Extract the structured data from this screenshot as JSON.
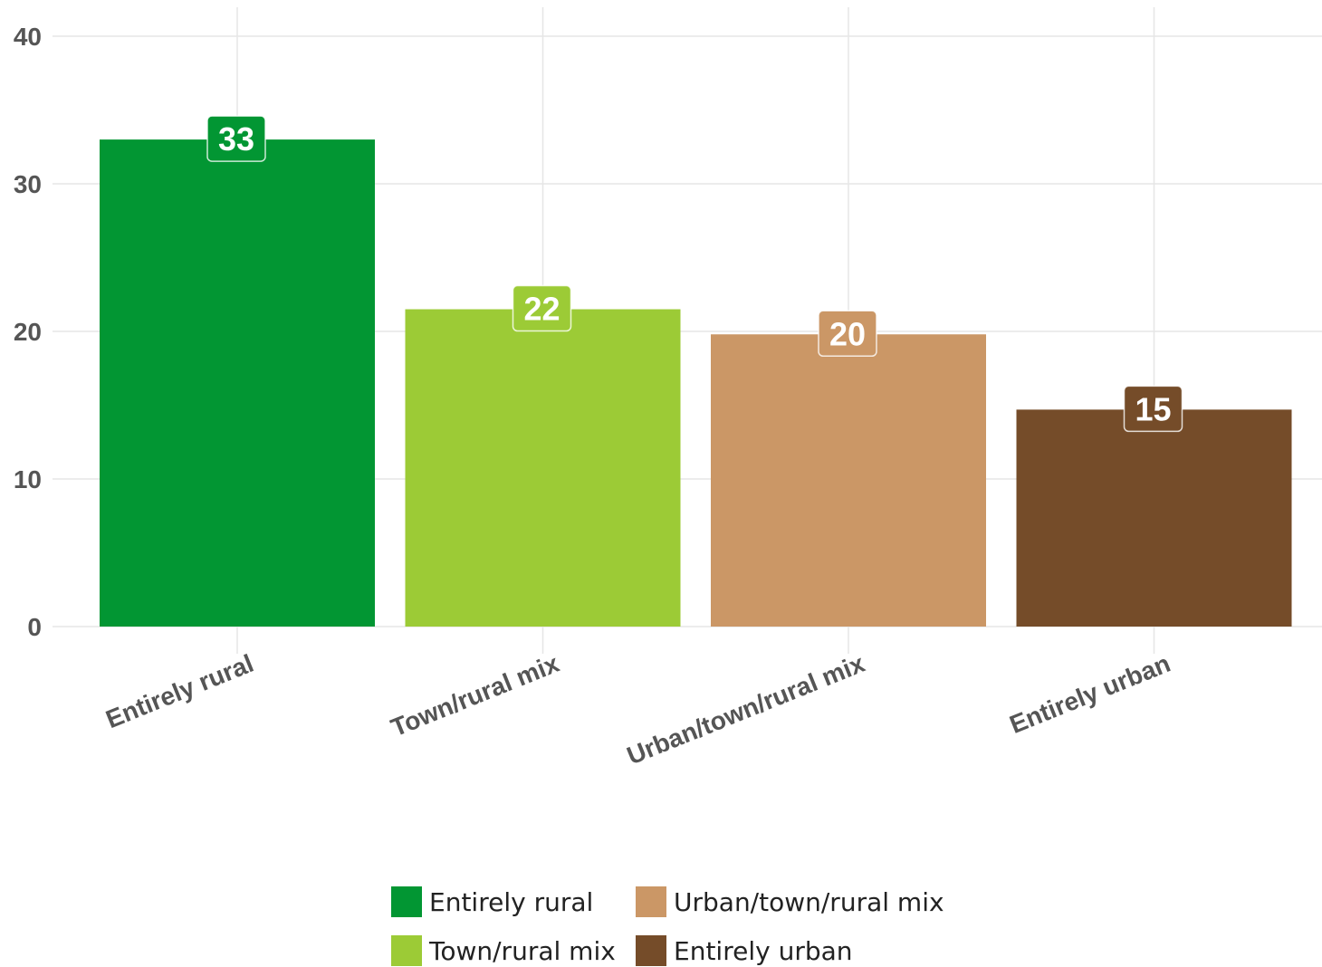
{
  "chart_data": {
    "type": "bar",
    "categories": [
      "Entirely rural",
      "Town/rural mix",
      "Urban/town/rural mix",
      "Entirely urban"
    ],
    "values": [
      33,
      21.5,
      19.8,
      14.7
    ],
    "data_labels": [
      "33",
      "22",
      "20",
      "15"
    ],
    "colors": [
      "#029633",
      "#9ccb36",
      "#cb9766",
      "#754c29"
    ],
    "ylim": [
      0,
      40
    ],
    "yticks": [
      0,
      10,
      20,
      30,
      40
    ],
    "ytick_labels": [
      "0",
      "10",
      "20",
      "30",
      "40"
    ],
    "grid": true,
    "legend_position": "bottom",
    "title": "",
    "xlabel": "",
    "ylabel": ""
  },
  "legend": {
    "items": [
      {
        "label": "Entirely rural",
        "color": "#029633"
      },
      {
        "label": "Urban/town/rural mix",
        "color": "#cb9766"
      },
      {
        "label": "Town/rural mix",
        "color": "#9ccb36"
      },
      {
        "label": "Entirely urban",
        "color": "#754c29"
      }
    ]
  }
}
